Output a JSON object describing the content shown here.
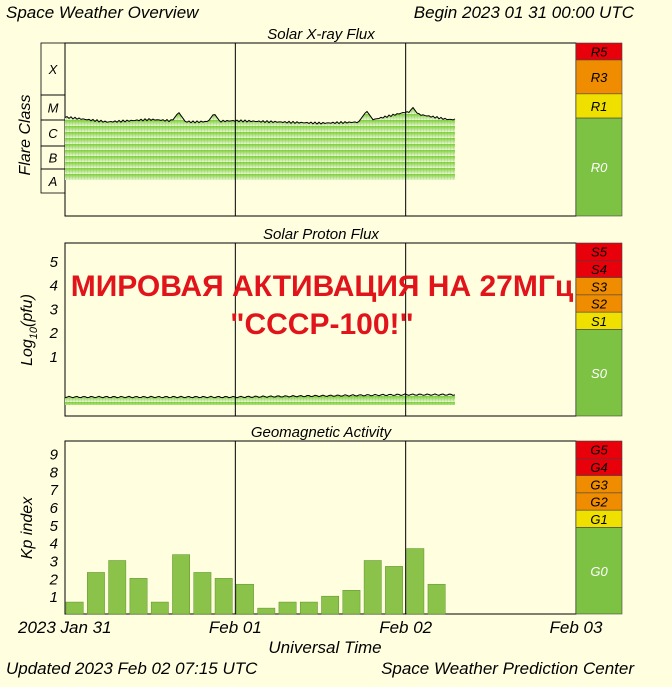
{
  "header": {
    "title": "Space Weather Overview",
    "begin": "Begin 2023 01 31 00:00 UTC"
  },
  "footer": {
    "updated": "Updated 2023 Feb 02 07:15 UTC",
    "source": "Space Weather Prediction Center"
  },
  "overlay": {
    "line1": "МИРОВАЯ АКТИВАЦИЯ НА 27МГц",
    "line2": "\"СССР-100!\""
  },
  "colors": {
    "background": "#ffffe0",
    "plot_green": "#8ad44a",
    "bar_green": "#8bc34a",
    "scale_red": "#e8000b",
    "scale_orange": "#f08c00",
    "scale_yellow": "#f0e000",
    "scale_green": "#7dc242",
    "overlay_red": "#e0141a"
  },
  "chart_data": [
    {
      "type": "area",
      "title": "Solar X-ray Flux",
      "ylabel": "Flare Class",
      "class_labels": [
        "X",
        "M",
        "C",
        "B",
        "A"
      ],
      "x": [
        "Jan 31 00:00",
        "Jan 31 06:00",
        "Jan 31 12:00",
        "Jan 31 18:00",
        "Feb 01 00:00",
        "Feb 01 06:00",
        "Feb 01 12:00",
        "Feb 01 18:00",
        "Feb 02 00:00",
        "Feb 02 06:00"
      ],
      "class_level": [
        4.1,
        3.9,
        4.0,
        3.9,
        3.95,
        3.9,
        3.85,
        3.9,
        4.3,
        4.0
      ],
      "peaks": [
        {
          "time": "Jan 31 16:00",
          "class_level": 4.3
        },
        {
          "time": "Jan 31 21:00",
          "class_level": 4.25
        },
        {
          "time": "Feb 01 18:30",
          "class_level": 4.35
        },
        {
          "time": "Feb 02 01:00",
          "class_level": 4.5
        }
      ],
      "scale": [
        {
          "label": "R5",
          "color": "#e8000b"
        },
        {
          "label": "R3",
          "color": "#f08c00"
        },
        {
          "label": "R1",
          "color": "#f0e000"
        },
        {
          "label": "R0",
          "color": "#7dc242"
        }
      ]
    },
    {
      "type": "area",
      "title": "Solar Proton Flux",
      "ylabel": "Log10(pfu)",
      "ytick_labels": [
        "5",
        "4",
        "3",
        "2",
        "1"
      ],
      "x": [
        "Jan 31 00:00",
        "Jan 31 12:00",
        "Feb 01 00:00",
        "Feb 01 12:00",
        "Feb 02 00:00",
        "Feb 02 07:00"
      ],
      "values": [
        -0.7,
        -0.7,
        -0.7,
        -0.65,
        -0.6,
        -0.6
      ],
      "ylim": [
        -1.5,
        5.8
      ],
      "scale": [
        {
          "label": "S5",
          "color": "#e8000b"
        },
        {
          "label": "S4",
          "color": "#e8000b"
        },
        {
          "label": "S3",
          "color": "#f08c00"
        },
        {
          "label": "S2",
          "color": "#f08c00"
        },
        {
          "label": "S1",
          "color": "#f0e000"
        },
        {
          "label": "S0",
          "color": "#7dc242"
        }
      ]
    },
    {
      "type": "bar",
      "title": "Geomagnetic Activity",
      "xlabel": "Universal Time",
      "ylabel": "Kp index",
      "ytick_labels": [
        "9",
        "8",
        "7",
        "6",
        "5",
        "4",
        "3",
        "2",
        "1"
      ],
      "xtick_labels": [
        "2023 Jan 31",
        "Feb 01",
        "Feb 02",
        "Feb 03"
      ],
      "ylim": [
        0,
        9.7
      ],
      "values": [
        0.67,
        2.33,
        3.0,
        2.0,
        0.67,
        3.33,
        2.33,
        2.0,
        1.67,
        0.33,
        0.67,
        0.67,
        1.0,
        1.33,
        3.0,
        2.67,
        3.67,
        1.67
      ],
      "scale": [
        {
          "label": "G5",
          "color": "#e8000b"
        },
        {
          "label": "G4",
          "color": "#e8000b"
        },
        {
          "label": "G3",
          "color": "#f08c00"
        },
        {
          "label": "G2",
          "color": "#f08c00"
        },
        {
          "label": "G1",
          "color": "#f0e000"
        },
        {
          "label": "G0",
          "color": "#7dc242"
        }
      ]
    }
  ]
}
